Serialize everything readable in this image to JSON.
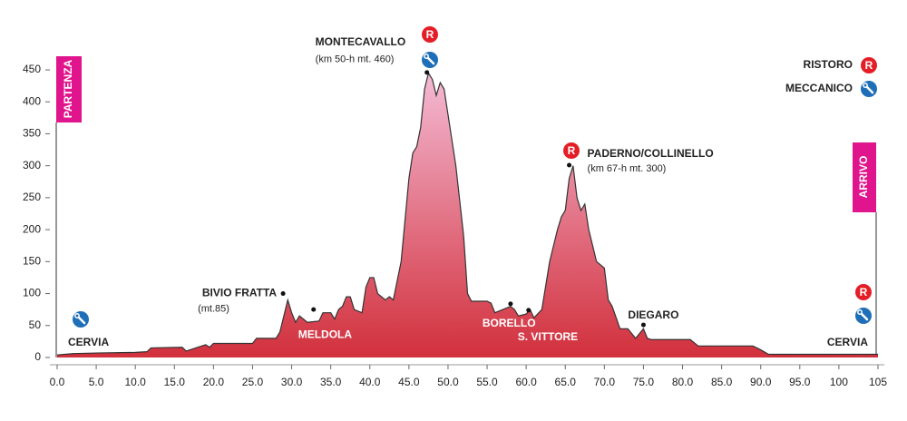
{
  "chart_data": {
    "type": "area",
    "x": [
      0,
      2,
      5,
      10,
      11.5,
      12,
      16,
      16.5,
      18,
      19,
      19.5,
      20,
      25,
      25.5,
      28,
      28.5,
      29.5,
      30,
      30.5,
      31,
      32,
      33.5,
      34,
      35,
      35.5,
      36,
      36.5,
      37,
      37.5,
      38,
      39,
      39.5,
      40,
      40.5,
      41,
      42,
      42.5,
      43,
      44,
      45,
      45.5,
      46,
      46.5,
      47,
      47.5,
      48,
      48.5,
      49,
      49.5,
      50,
      51,
      52,
      52.5,
      53,
      55,
      55.5,
      56,
      57,
      58,
      58.5,
      59,
      60,
      60.5,
      61,
      62,
      63,
      64,
      64.5,
      65,
      65.5,
      66,
      66.5,
      67,
      67.5,
      68,
      69,
      70,
      70.5,
      71,
      72,
      73,
      74,
      75,
      75.5,
      76,
      81,
      82,
      89,
      90,
      91,
      105
    ],
    "values": [
      4,
      6,
      7,
      8,
      9,
      15,
      16,
      10,
      16,
      20,
      16,
      22,
      22,
      30,
      30,
      40,
      90,
      70,
      55,
      65,
      55,
      57,
      70,
      70,
      60,
      75,
      80,
      95,
      95,
      75,
      70,
      110,
      125,
      125,
      100,
      90,
      95,
      90,
      150,
      280,
      320,
      330,
      360,
      420,
      445,
      435,
      410,
      430,
      420,
      380,
      300,
      190,
      100,
      88,
      88,
      85,
      70,
      75,
      80,
      75,
      65,
      68,
      75,
      62,
      75,
      150,
      200,
      220,
      230,
      280,
      300,
      250,
      230,
      240,
      200,
      150,
      140,
      90,
      80,
      45,
      45,
      30,
      45,
      30,
      28,
      28,
      18,
      18,
      12,
      5,
      5
    ],
    "color_top": "#f4bcd6",
    "color_bottom": "#d2303c",
    "xlim": [
      0,
      105
    ],
    "ylim": [
      0,
      450
    ],
    "xticks": [
      {
        "value": 0,
        "label": "0.0"
      },
      {
        "value": 5,
        "label": "5.0"
      },
      {
        "value": 10,
        "label": "10.0"
      },
      {
        "value": 15,
        "label": "15.0"
      },
      {
        "value": 20,
        "label": "20.0"
      },
      {
        "value": 25,
        "label": "25.0"
      },
      {
        "value": 30,
        "label": "30.0"
      },
      {
        "value": 35,
        "label": "35.0"
      },
      {
        "value": 40,
        "label": "40.0"
      },
      {
        "value": 45,
        "label": "45.0"
      },
      {
        "value": 50,
        "label": "50.0"
      },
      {
        "value": 55,
        "label": "55.0"
      },
      {
        "value": 60,
        "label": "60.0"
      },
      {
        "value": 65,
        "label": "65.0"
      },
      {
        "value": 70,
        "label": "70.0"
      },
      {
        "value": 75,
        "label": "75.0"
      },
      {
        "value": 80,
        "label": "80.0"
      },
      {
        "value": 85,
        "label": "85.0"
      },
      {
        "value": 90,
        "label": "90.0"
      },
      {
        "value": 95,
        "label": "95.0"
      },
      100,
      105
    ],
    "yticks": [
      0,
      50,
      100,
      150,
      200,
      250,
      300,
      350,
      400,
      450
    ],
    "points": [
      {
        "label": "BIVIO FRATTA",
        "sublabel": "(mt.85)",
        "x": 28.9,
        "y": 100
      },
      {
        "label": "MELDOLA",
        "x": 32.8,
        "y": 75
      },
      {
        "label": "MONTECAVALLO",
        "sublabel": "(km 50-h mt. 460)",
        "x": 47.3,
        "y": 446
      },
      {
        "label": "BORELLO",
        "x": 58,
        "y": 84
      },
      {
        "label": "S. VITTORE",
        "x": 60.3,
        "y": 74
      },
      {
        "label": "PADERNO/COLLINELLO",
        "sublabel": "(km 67-h mt. 300)",
        "x": 65.5,
        "y": 301
      },
      {
        "label": "DIEGARO",
        "x": 75,
        "y": 51
      }
    ],
    "towns": [
      "CERVIA",
      "CERVIA"
    ],
    "start_label": "PARTENZA",
    "finish_label": "ARRIVO",
    "legend": {
      "ristoro": "RISTORO",
      "meccanico": "MECCANICO",
      "symbol": "R"
    }
  }
}
